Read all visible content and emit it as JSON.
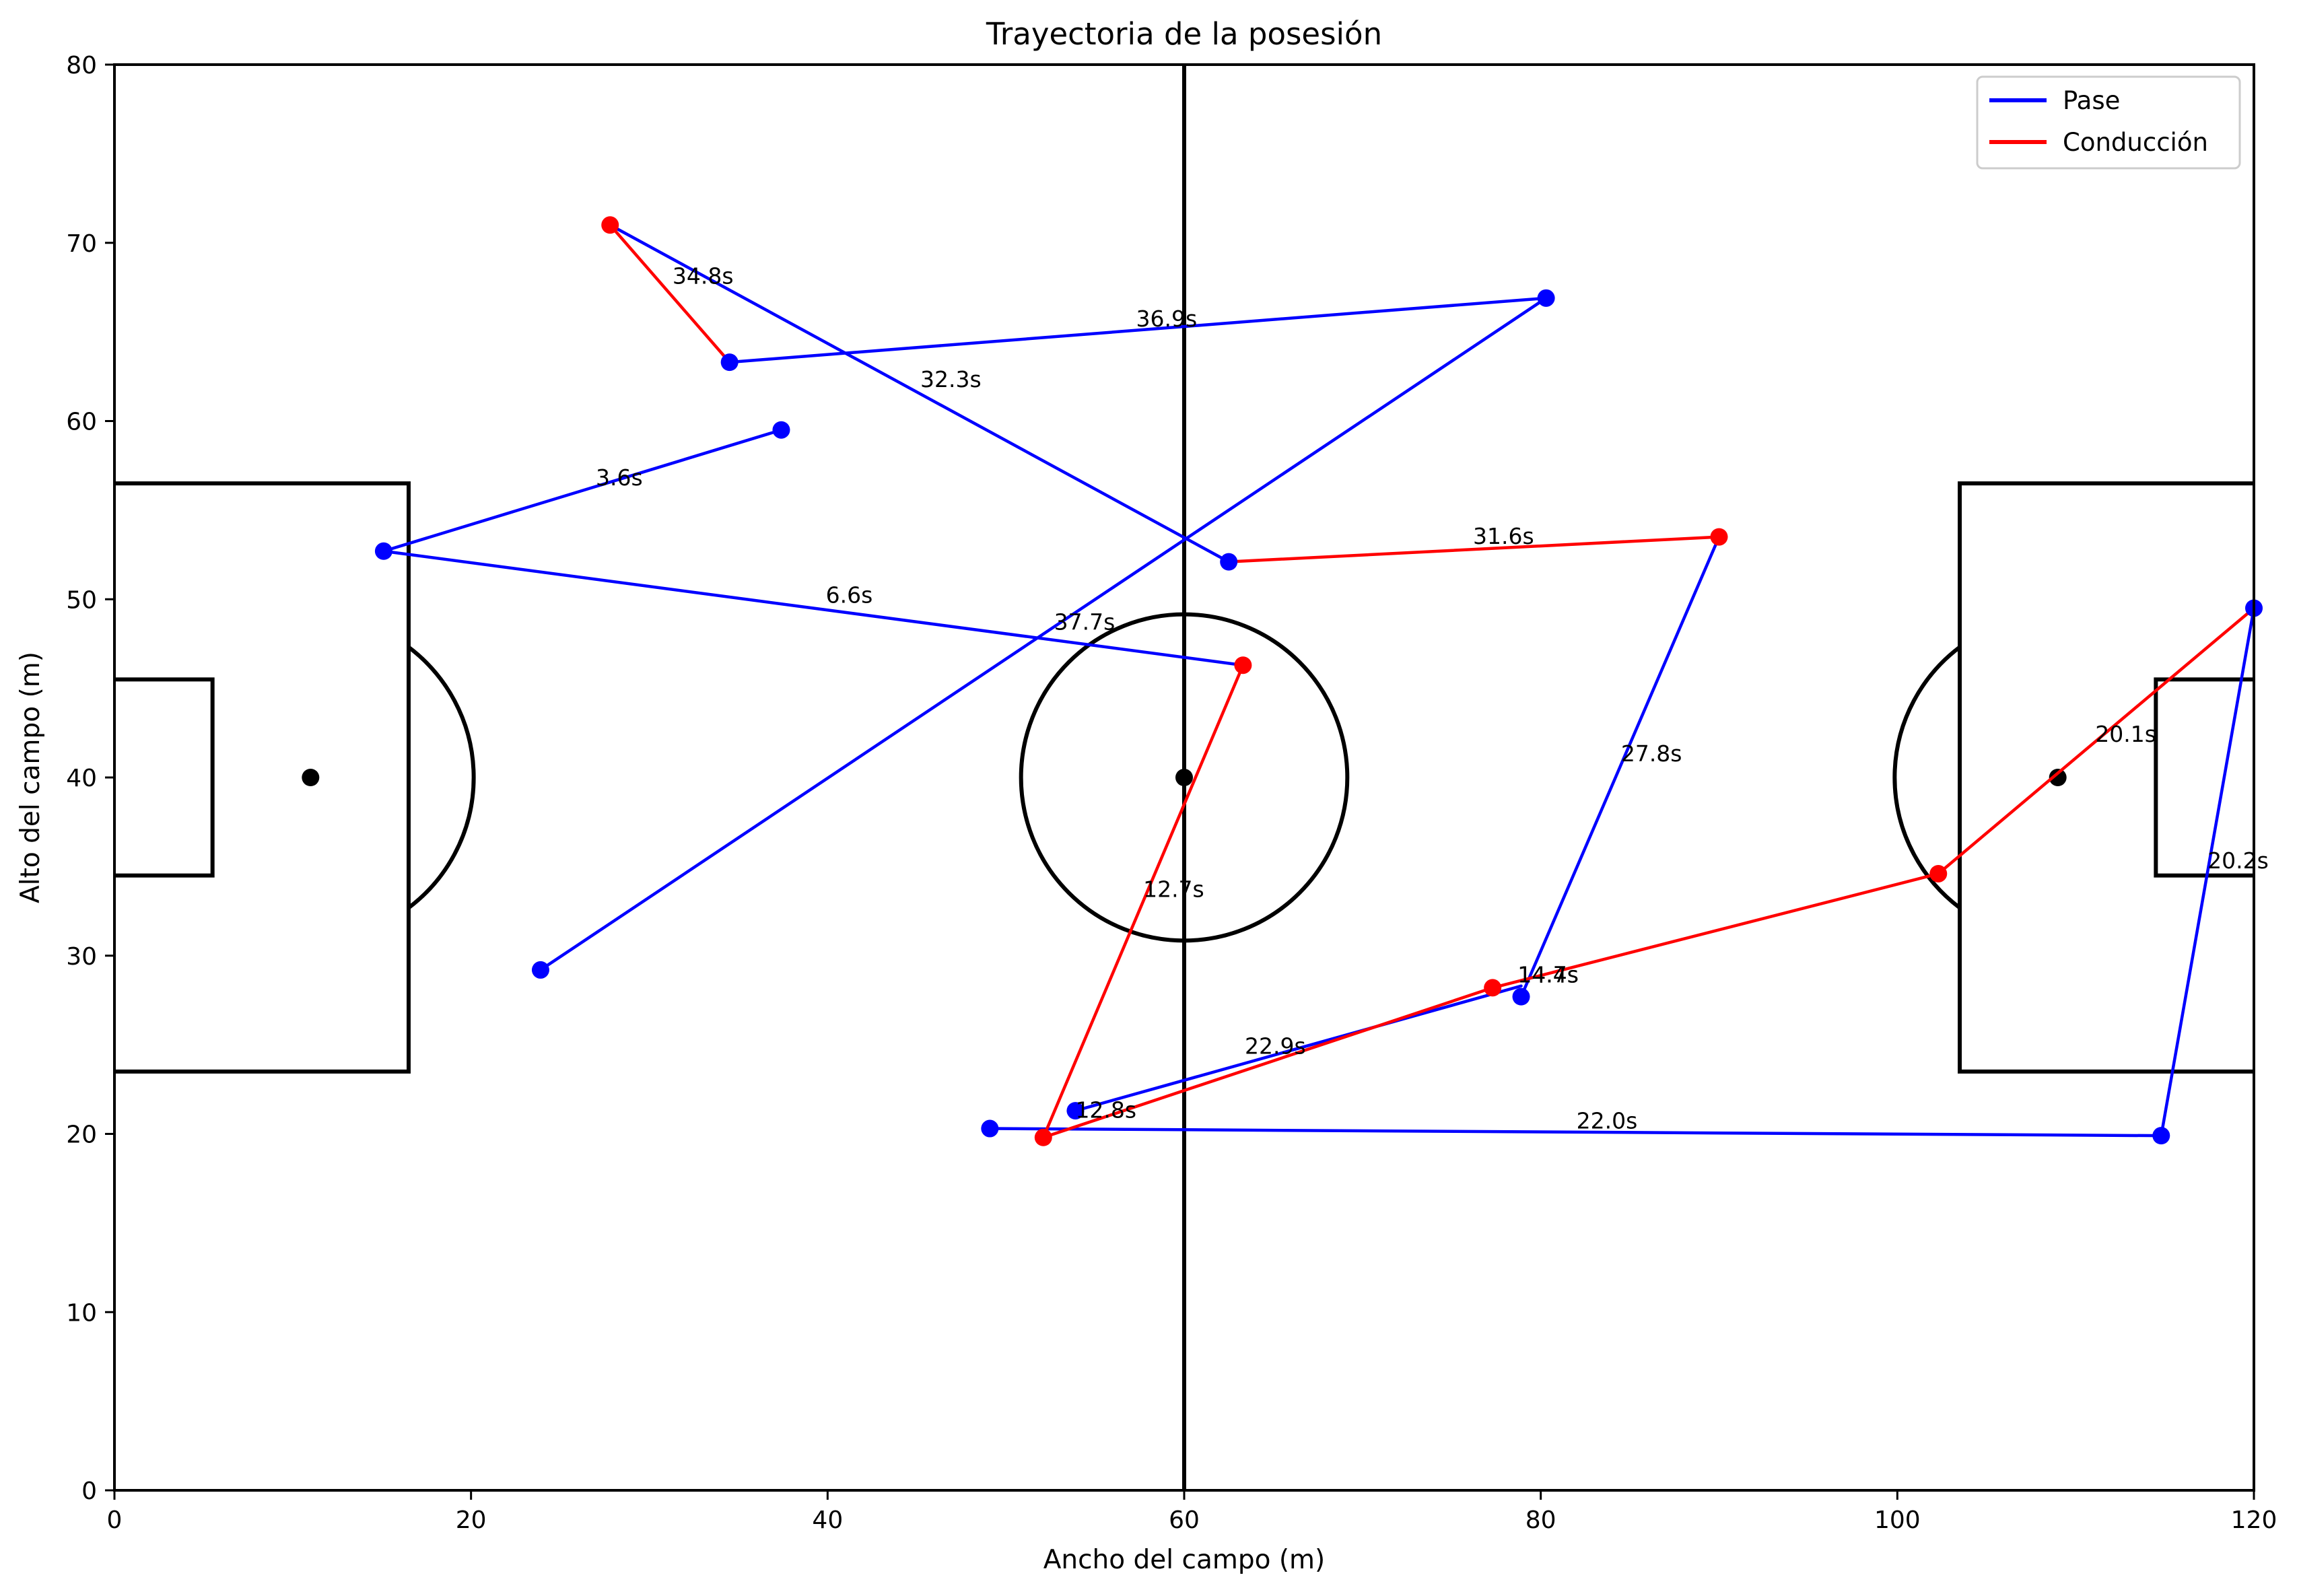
{
  "chart_data": {
    "type": "line",
    "title": "Trayectoria de la posesión",
    "xlabel": "Ancho del campo (m)",
    "ylabel": "Alto del campo (m)",
    "xlim": [
      0,
      120
    ],
    "ylim": [
      0,
      80
    ],
    "xticks": [
      "0",
      "20",
      "40",
      "60",
      "80",
      "100",
      "120"
    ],
    "yticks": [
      "0",
      "10",
      "20",
      "30",
      "40",
      "50",
      "60",
      "70",
      "80"
    ],
    "grid": false,
    "legend": {
      "placement": "top-right",
      "entries": [
        {
          "label": "Pase",
          "color": "#0000ff"
        },
        {
          "label": "Conducción",
          "color": "#ff0000"
        }
      ]
    },
    "pitch": {
      "length": 120,
      "width": 80,
      "halfway_x": 60,
      "center_spot": [
        60,
        40
      ],
      "center_circle_radius": 9.15,
      "left_penalty_spot": [
        11,
        40
      ],
      "right_penalty_spot": [
        109,
        40
      ],
      "penalty_area_depth": 16.5,
      "penalty_area_y": [
        23.5,
        56.5
      ],
      "goal_area_depth": 5.5,
      "goal_area_y": [
        34.5,
        45.5
      ]
    },
    "series": [
      {
        "name": "Pase",
        "color": "#0000ff",
        "segments": [
          {
            "from": [
              37.4,
              59.5
            ],
            "to": [
              15.1,
              52.7
            ],
            "label": "3.6s"
          },
          {
            "from": [
              15.1,
              52.7
            ],
            "to": [
              63.3,
              46.3
            ],
            "label": "6.6s"
          },
          {
            "from": [
              49.1,
              20.3
            ],
            "to": [
              114.8,
              19.9
            ],
            "label": "22.0s"
          },
          {
            "from": [
              114.8,
              19.9
            ],
            "to": [
              120.0,
              49.5
            ],
            "label": "20.2s"
          },
          {
            "from": [
              53.9,
              21.3
            ],
            "to": [
              78.9,
              28.3
            ],
            "label": "22.9s"
          },
          {
            "from": [
              78.9,
              27.7
            ],
            "to": [
              90.0,
              53.5
            ],
            "label": "27.8s"
          },
          {
            "from": [
              62.5,
              52.1
            ],
            "to": [
              27.8,
              71.0
            ],
            "label": "32.3s"
          },
          {
            "from": [
              34.5,
              63.3
            ],
            "to": [
              80.3,
              66.9
            ],
            "label": "36.9s"
          },
          {
            "from": [
              80.3,
              66.9
            ],
            "to": [
              23.9,
              29.2
            ],
            "label": "37.7s"
          }
        ],
        "points": [
          [
            37.4,
            59.5
          ],
          [
            15.1,
            52.7
          ],
          [
            49.1,
            20.3
          ],
          [
            114.8,
            19.9
          ],
          [
            120.0,
            49.5
          ],
          [
            53.9,
            21.3
          ],
          [
            78.9,
            27.7
          ],
          [
            62.5,
            52.1
          ],
          [
            34.5,
            63.3
          ],
          [
            80.3,
            66.9
          ],
          [
            23.9,
            29.2
          ]
        ]
      },
      {
        "name": "Conducción",
        "color": "#ff0000",
        "segments": [
          {
            "from": [
              63.3,
              46.3
            ],
            "to": [
              52.1,
              19.8
            ],
            "label": "12.7s"
          },
          {
            "from": [
              52.1,
              19.8
            ],
            "to": [
              77.3,
              28.2
            ],
            "label": "12.8s"
          },
          {
            "from": [
              77.3,
              28.2
            ],
            "to": [
              102.3,
              34.6
            ],
            "label": "14.4s"
          },
          {
            "from": [
              102.3,
              34.6
            ],
            "to": [
              120.0,
              49.5
            ],
            "label": "20.1s"
          },
          {
            "from": [
              62.5,
              52.1
            ],
            "to": [
              90.0,
              53.5
            ],
            "label": "31.6s"
          },
          {
            "from": [
              27.8,
              71.0
            ],
            "to": [
              34.5,
              63.3
            ],
            "label": "34.8s"
          }
        ],
        "points": [
          [
            63.3,
            46.3
          ],
          [
            52.1,
            19.8
          ],
          [
            77.3,
            28.2
          ],
          [
            102.3,
            34.6
          ],
          [
            90.0,
            53.5
          ],
          [
            27.8,
            71.0
          ]
        ]
      }
    ],
    "annotations": [
      {
        "text": "3.6s",
        "x": 27.0,
        "y": 56.4
      },
      {
        "text": "6.6s",
        "x": 39.9,
        "y": 49.8
      },
      {
        "text": "12.7s",
        "x": 57.7,
        "y": 33.3
      },
      {
        "text": "12.8s",
        "x": 53.9,
        "y": 20.9
      },
      {
        "text": "14.4s",
        "x": 78.7,
        "y": 28.5
      },
      {
        "text": "14.7s",
        "x": 78.7,
        "y": 28.5
      },
      {
        "text": "20.1s",
        "x": 111.1,
        "y": 42.0
      },
      {
        "text": "20.2s",
        "x": 117.4,
        "y": 34.9
      },
      {
        "text": "22.0s",
        "x": 82.0,
        "y": 20.3
      },
      {
        "text": "22.9s",
        "x": 63.4,
        "y": 24.5
      },
      {
        "text": "27.8s",
        "x": 84.5,
        "y": 40.9
      },
      {
        "text": "31.6s",
        "x": 76.2,
        "y": 53.1
      },
      {
        "text": "32.3s",
        "x": 45.2,
        "y": 61.9
      },
      {
        "text": "34.8s",
        "x": 31.3,
        "y": 67.7
      },
      {
        "text": "36.9s",
        "x": 57.3,
        "y": 65.3
      },
      {
        "text": "37.7s",
        "x": 52.7,
        "y": 48.3
      }
    ]
  }
}
